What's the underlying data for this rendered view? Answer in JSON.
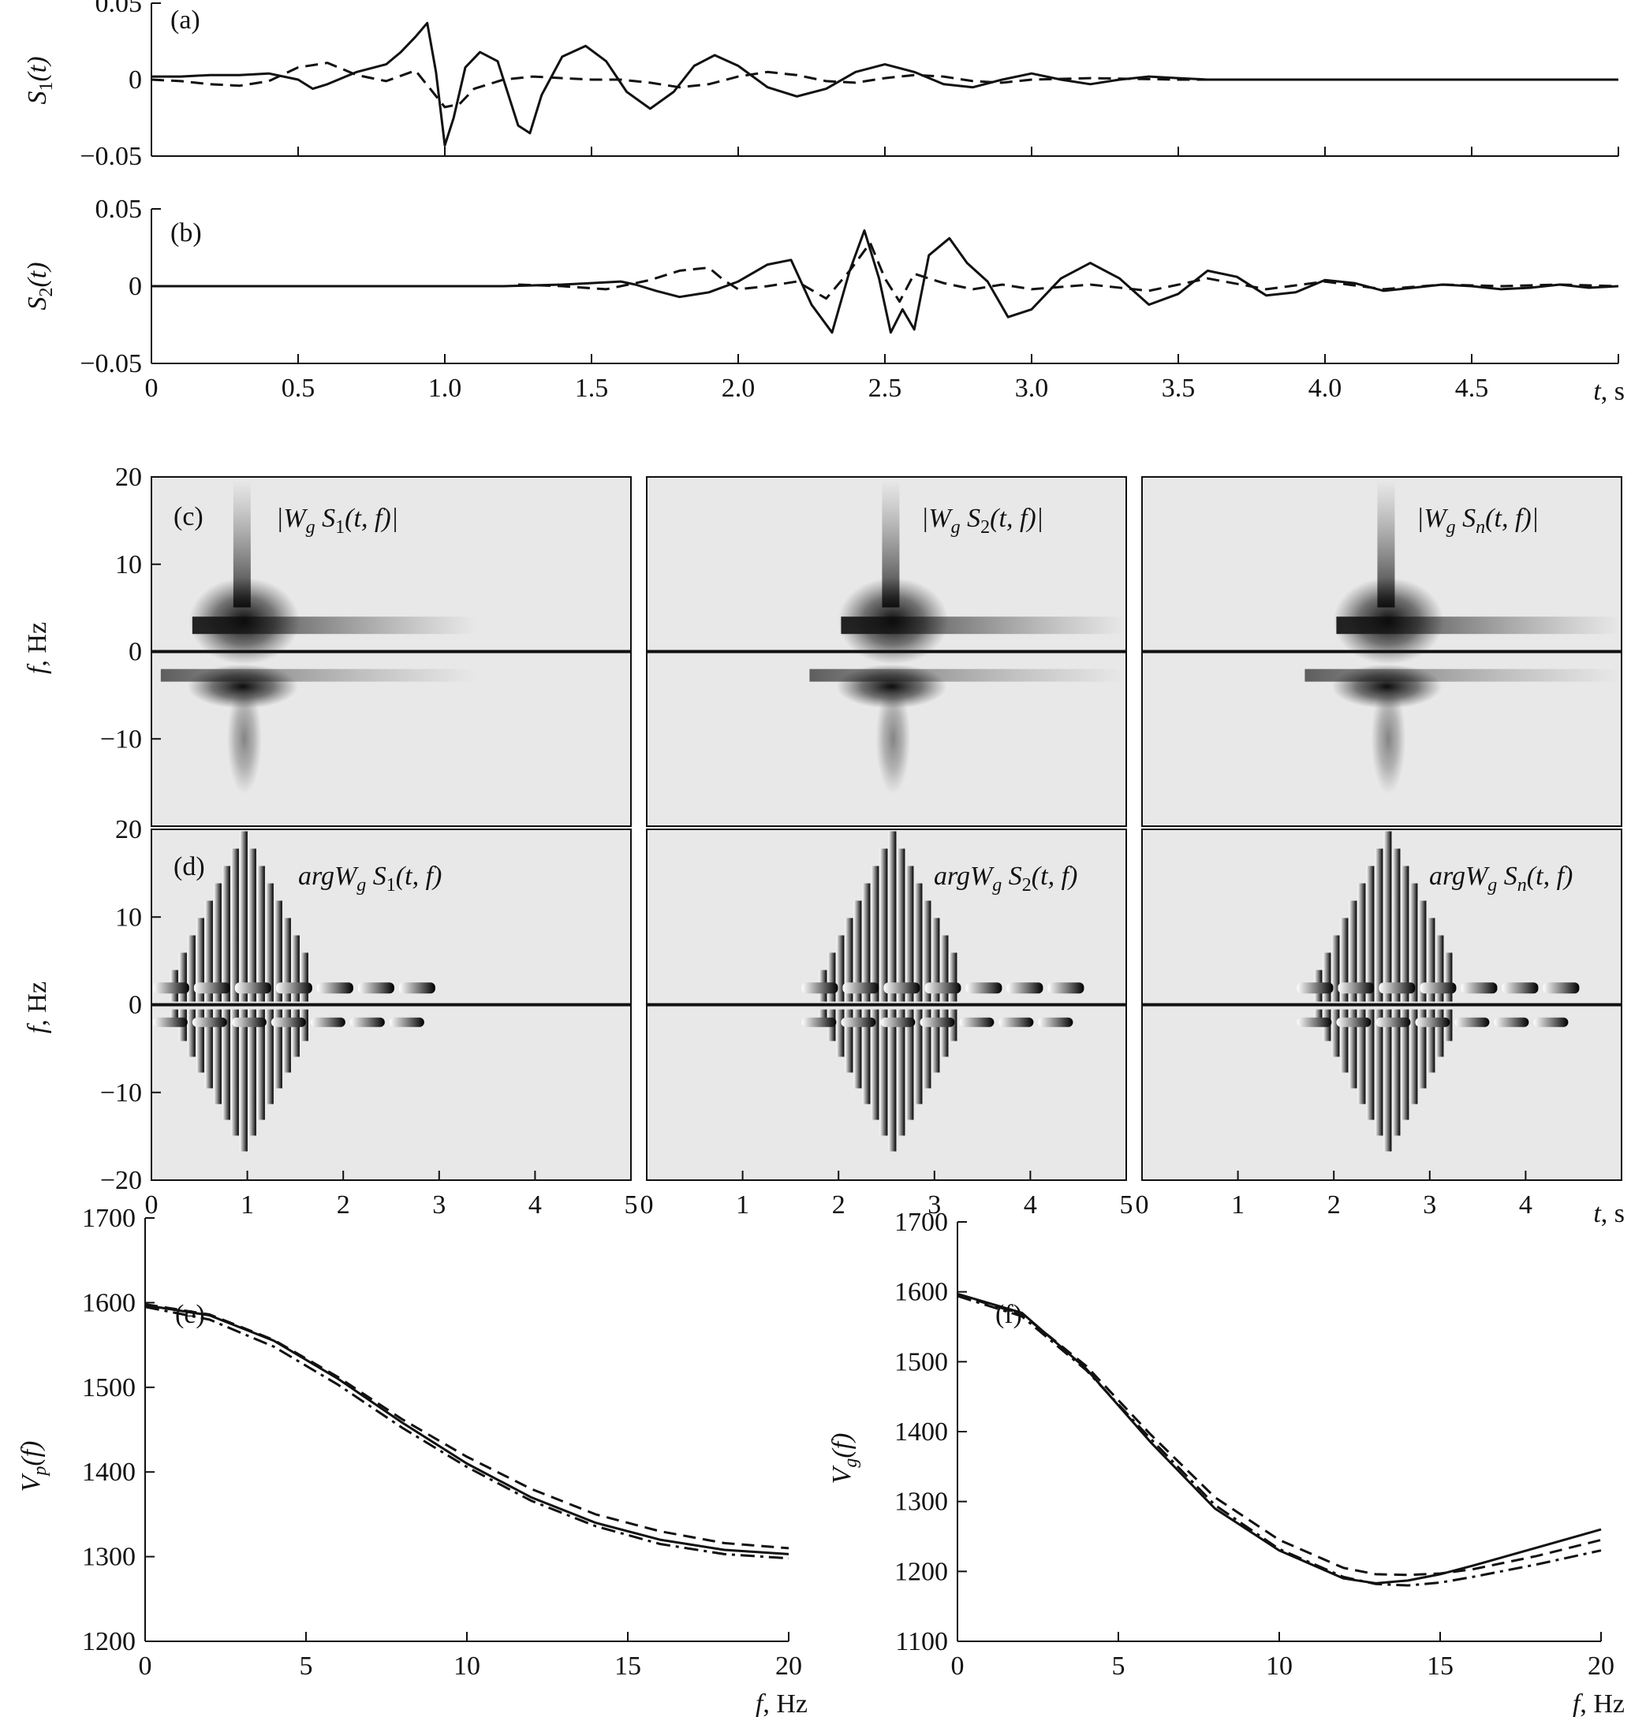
{
  "figure": {
    "ink_color": "#111111",
    "tf_background": "#e8e8e8"
  },
  "chart_data": [
    {
      "id": "a",
      "type": "line",
      "panel_label": "(a)",
      "ylabel_main": "S",
      "ylabel_sub": "1",
      "ylabel_rest": "(t)",
      "xlim": [
        0,
        5
      ],
      "ylim": [
        -0.05,
        0.05
      ],
      "yticks": [
        "0.05",
        "0",
        "−0.05"
      ],
      "ytick_values": [
        0.05,
        0,
        -0.05
      ],
      "series": [
        {
          "style": "solid",
          "x": [
            0,
            0.1,
            0.2,
            0.3,
            0.4,
            0.5,
            0.55,
            0.6,
            0.7,
            0.8,
            0.85,
            0.9,
            0.94,
            0.97,
            1.0,
            1.03,
            1.07,
            1.12,
            1.18,
            1.25,
            1.29,
            1.33,
            1.4,
            1.48,
            1.55,
            1.62,
            1.7,
            1.78,
            1.85,
            1.92,
            2.0,
            2.1,
            2.2,
            2.3,
            2.4,
            2.5,
            2.6,
            2.7,
            2.8,
            2.9,
            3.0,
            3.1,
            3.2,
            3.3,
            3.4,
            3.5,
            3.6,
            3.8,
            4.0,
            4.2,
            4.5,
            5.0
          ],
          "y": [
            0.002,
            0.002,
            0.003,
            0.003,
            0.004,
            0.0,
            -0.006,
            -0.003,
            0.005,
            0.01,
            0.018,
            0.028,
            0.037,
            0.005,
            -0.043,
            -0.025,
            0.008,
            0.018,
            0.012,
            -0.03,
            -0.035,
            -0.01,
            0.015,
            0.022,
            0.012,
            -0.008,
            -0.019,
            -0.008,
            0.009,
            0.016,
            0.009,
            -0.005,
            -0.011,
            -0.006,
            0.005,
            0.01,
            0.005,
            -0.003,
            -0.005,
            0.0,
            0.004,
            0.0,
            -0.003,
            0.0,
            0.002,
            0.001,
            0.0,
            0.0,
            0.0,
            0.0,
            0.0,
            0.0
          ]
        },
        {
          "style": "dashed",
          "x": [
            0,
            0.1,
            0.2,
            0.3,
            0.4,
            0.5,
            0.6,
            0.7,
            0.8,
            0.9,
            0.95,
            1.0,
            1.05,
            1.1,
            1.2,
            1.3,
            1.4,
            1.5,
            1.6,
            1.7,
            1.8,
            1.9,
            2.0,
            2.1,
            2.2,
            2.3,
            2.4,
            2.5,
            2.6,
            2.7,
            2.8,
            2.9,
            3.0,
            3.2,
            3.5,
            4.0,
            5.0
          ],
          "y": [
            0.0,
            -0.001,
            -0.003,
            -0.004,
            -0.001,
            0.008,
            0.011,
            0.003,
            -0.001,
            0.006,
            -0.006,
            -0.018,
            -0.016,
            -0.006,
            0.0,
            0.002,
            0.001,
            0.0,
            0.0,
            -0.002,
            -0.005,
            -0.003,
            0.002,
            0.005,
            0.003,
            -0.001,
            -0.002,
            0.001,
            0.003,
            0.002,
            -0.001,
            -0.002,
            0.0,
            0.001,
            0.0,
            0.0,
            0.0
          ]
        }
      ]
    },
    {
      "id": "b",
      "type": "line",
      "panel_label": "(b)",
      "ylabel_main": "S",
      "ylabel_sub": "2",
      "ylabel_rest": "(t)",
      "xlim": [
        0,
        5
      ],
      "ylim": [
        -0.05,
        0.05
      ],
      "yticks": [
        "0.05",
        "0",
        "−0.05"
      ],
      "ytick_values": [
        0.05,
        0,
        -0.05
      ],
      "xticks": [
        "0",
        "0.5",
        "1.0",
        "1.5",
        "2.0",
        "2.5",
        "3.0",
        "3.5",
        "4.0",
        "4.5"
      ],
      "xtick_values": [
        0,
        0.5,
        1.0,
        1.5,
        2.0,
        2.5,
        3.0,
        3.5,
        4.0,
        4.5
      ],
      "xlabel_var": "t",
      "xlabel_unit": ", s",
      "series": [
        {
          "style": "solid",
          "x": [
            0,
            1.2,
            1.4,
            1.5,
            1.6,
            1.65,
            1.72,
            1.8,
            1.9,
            2.0,
            2.1,
            2.18,
            2.25,
            2.32,
            2.38,
            2.43,
            2.48,
            2.52,
            2.56,
            2.6,
            2.65,
            2.72,
            2.78,
            2.85,
            2.92,
            3.0,
            3.1,
            3.2,
            3.3,
            3.4,
            3.5,
            3.6,
            3.7,
            3.8,
            3.9,
            4.0,
            4.1,
            4.2,
            4.3,
            4.4,
            4.5,
            4.6,
            4.7,
            4.8,
            4.9,
            5.0
          ],
          "y": [
            0.0,
            0.0,
            0.001,
            0.002,
            0.003,
            0.001,
            -0.003,
            -0.007,
            -0.004,
            0.003,
            0.014,
            0.017,
            -0.012,
            -0.03,
            0.01,
            0.036,
            0.005,
            -0.03,
            -0.015,
            -0.028,
            0.02,
            0.031,
            0.015,
            0.003,
            -0.02,
            -0.015,
            0.005,
            0.015,
            0.005,
            -0.012,
            -0.005,
            0.01,
            0.006,
            -0.006,
            -0.004,
            0.004,
            0.002,
            -0.003,
            -0.001,
            0.001,
            0.0,
            -0.002,
            -0.001,
            0.001,
            -0.001,
            0.0
          ]
        },
        {
          "style": "dashed",
          "x": [
            1.25,
            1.4,
            1.55,
            1.7,
            1.8,
            1.9,
            1.95,
            2.0,
            2.1,
            2.2,
            2.3,
            2.38,
            2.45,
            2.5,
            2.55,
            2.6,
            2.7,
            2.8,
            2.9,
            3.0,
            3.2,
            3.4,
            3.6,
            3.8,
            4.0,
            4.2,
            4.4,
            4.6,
            4.8,
            5.0
          ],
          "y": [
            0.001,
            0.0,
            -0.002,
            0.004,
            0.01,
            0.012,
            0.004,
            -0.002,
            0.0,
            0.003,
            -0.008,
            0.01,
            0.028,
            0.005,
            -0.01,
            0.008,
            0.002,
            -0.002,
            0.001,
            -0.002,
            0.001,
            -0.003,
            0.005,
            -0.002,
            0.003,
            -0.002,
            0.001,
            0.0,
            0.001,
            0.0
          ]
        }
      ]
    },
    {
      "id": "cd",
      "type": "heatmap",
      "panel_c_label": "(c)",
      "panel_d_label": "(d)",
      "mag_titles": [
        {
          "pre": "|W",
          "sub_g": "g",
          "mid": " S",
          "sub": "1",
          "post": "(t, f)|"
        },
        {
          "pre": "|W",
          "sub_g": "g",
          "mid": " S",
          "sub": "2",
          "post": "(t, f)|"
        },
        {
          "pre": "|W",
          "sub_g": "g",
          "mid": " S",
          "sub": "n",
          "post": "(t, f)|"
        }
      ],
      "phase_titles": [
        {
          "pre": "argW",
          "sub_g": "g",
          "mid": " S",
          "sub": "1",
          "post": "(t, f)"
        },
        {
          "pre": "argW",
          "sub_g": "g",
          "mid": " S",
          "sub": "2",
          "post": "(t, f)"
        },
        {
          "pre": "argW",
          "sub_g": "g",
          "mid": " S",
          "sub": "n",
          "post": "(t, f)"
        }
      ],
      "centers_t": [
        0.92,
        2.52,
        2.52
      ],
      "xlim": [
        0,
        5
      ],
      "ylim": [
        -20,
        20
      ],
      "ylabel_var": "f",
      "ylabel_unit": ", Hz",
      "yticks": [
        "20",
        "10",
        "0",
        "−10",
        "−20"
      ],
      "ytick_values": [
        20,
        10,
        0,
        -10,
        -20
      ],
      "xticks_first": [
        "0",
        "1",
        "2",
        "3",
        "4",
        "5"
      ],
      "xticks_second": [
        "0",
        "1",
        "2",
        "3",
        "4",
        "5"
      ],
      "xticks_third": [
        "0",
        "1",
        "2",
        "3",
        "4"
      ],
      "xtick_values": [
        0,
        1,
        2,
        3,
        4,
        5
      ],
      "xlabel_var": "t",
      "xlabel_unit": ", s"
    },
    {
      "id": "e",
      "type": "line",
      "panel_label": "(e)",
      "ylabel_main": "V",
      "ylabel_sub": "p",
      "ylabel_rest": "(f)",
      "xlim": [
        0,
        20
      ],
      "ylim": [
        1200,
        1700
      ],
      "yticks": [
        "1700",
        "1600",
        "1500",
        "1400",
        "1300",
        "1200"
      ],
      "ytick_values": [
        1700,
        1600,
        1500,
        1400,
        1300,
        1200
      ],
      "xticks": [
        "0",
        "5",
        "10",
        "15",
        "20"
      ],
      "xtick_values": [
        0,
        5,
        10,
        15,
        20
      ],
      "xlabel_var": "f",
      "xlabel_unit": ", Hz",
      "series": [
        {
          "style": "solid",
          "x": [
            0,
            2,
            4,
            6,
            8,
            10,
            12,
            14,
            16,
            18,
            20
          ],
          "y": [
            1597,
            1585,
            1555,
            1510,
            1458,
            1410,
            1370,
            1340,
            1320,
            1308,
            1303
          ]
        },
        {
          "style": "dashed",
          "x": [
            0,
            2,
            4,
            6,
            8,
            10,
            12,
            14,
            16,
            18,
            20
          ],
          "y": [
            1598,
            1586,
            1556,
            1512,
            1462,
            1418,
            1380,
            1350,
            1330,
            1316,
            1310
          ]
        },
        {
          "style": "dashdot",
          "x": [
            0,
            2,
            4,
            6,
            8,
            10,
            12,
            14,
            16,
            18,
            20
          ],
          "y": [
            1595,
            1580,
            1548,
            1503,
            1452,
            1406,
            1366,
            1336,
            1315,
            1303,
            1298
          ]
        }
      ]
    },
    {
      "id": "f",
      "type": "line",
      "panel_label": "(f)",
      "ylabel_main": "V",
      "ylabel_sub": "g",
      "ylabel_rest": "(f)",
      "xlim": [
        0,
        20
      ],
      "ylim": [
        1100,
        1700
      ],
      "yticks": [
        "1700",
        "1600",
        "1500",
        "1400",
        "1300",
        "1200",
        "1100"
      ],
      "ytick_values": [
        1700,
        1600,
        1500,
        1400,
        1300,
        1200,
        1100
      ],
      "xticks": [
        "0",
        "5",
        "10",
        "15",
        "20"
      ],
      "xtick_values": [
        0,
        5,
        10,
        15,
        20
      ],
      "xlabel_var": "f",
      "xlabel_unit": ", Hz",
      "series": [
        {
          "style": "solid",
          "x": [
            0,
            2,
            4,
            6,
            8,
            10,
            12,
            13,
            14,
            15,
            16,
            18,
            20
          ],
          "y": [
            1597,
            1570,
            1490,
            1385,
            1290,
            1230,
            1190,
            1183,
            1187,
            1196,
            1208,
            1234,
            1260
          ]
        },
        {
          "style": "dashed",
          "x": [
            0,
            2,
            4,
            6,
            8,
            10,
            12,
            13,
            14,
            15,
            16,
            18,
            20
          ],
          "y": [
            1596,
            1568,
            1494,
            1396,
            1306,
            1245,
            1205,
            1196,
            1195,
            1197,
            1203,
            1222,
            1245
          ]
        },
        {
          "style": "dashdot",
          "x": [
            0,
            2,
            4,
            6,
            8,
            10,
            12,
            13,
            14,
            15,
            16,
            18,
            20
          ],
          "y": [
            1594,
            1565,
            1488,
            1390,
            1295,
            1232,
            1192,
            1182,
            1180,
            1184,
            1192,
            1210,
            1230
          ]
        }
      ]
    }
  ]
}
